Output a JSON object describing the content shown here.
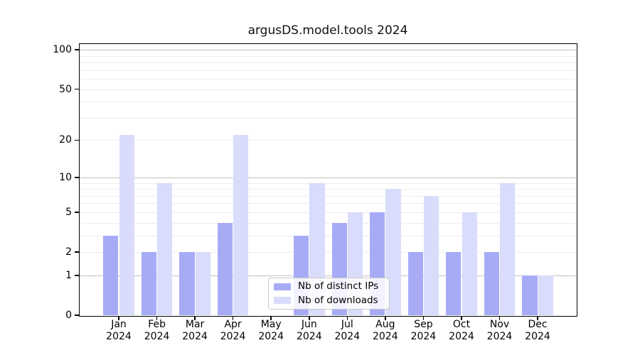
{
  "chart_data": {
    "type": "bar",
    "title": "argusDS.model.tools 2024",
    "categories": [
      "Jan",
      "Feb",
      "Mar",
      "Apr",
      "May",
      "Jun",
      "Jul",
      "Aug",
      "Sep",
      "Oct",
      "Nov",
      "Dec"
    ],
    "x_year_label": "2024",
    "series": [
      {
        "name": "Nb of distinct IPs",
        "color": "#a7abf6",
        "values": [
          3,
          2,
          2,
          4,
          0,
          3,
          4,
          5,
          2,
          2,
          2,
          1
        ]
      },
      {
        "name": "Nb of downloads",
        "color": "#d9dcfb",
        "values": [
          22,
          9,
          2,
          22,
          0,
          9,
          5,
          8,
          7,
          5,
          9,
          1
        ]
      }
    ],
    "xlabel": "",
    "ylabel": "",
    "yscale": "log1p",
    "ylim": [
      0,
      110
    ],
    "yticks": [
      0,
      1,
      2,
      5,
      10,
      20,
      50,
      100
    ],
    "y_major_gridlines": [
      1,
      10,
      100
    ],
    "y_minor_gridlines": [
      2,
      3,
      4,
      5,
      6,
      7,
      8,
      9,
      20,
      30,
      40,
      50,
      60,
      70,
      80,
      90
    ],
    "grid": true,
    "legend_position": "lower-center",
    "colors": {
      "major_grid": "#c2c2c2",
      "minor_grid": "#ececec",
      "spine": "#000000",
      "text": "#000000",
      "background": "#ffffff"
    }
  }
}
